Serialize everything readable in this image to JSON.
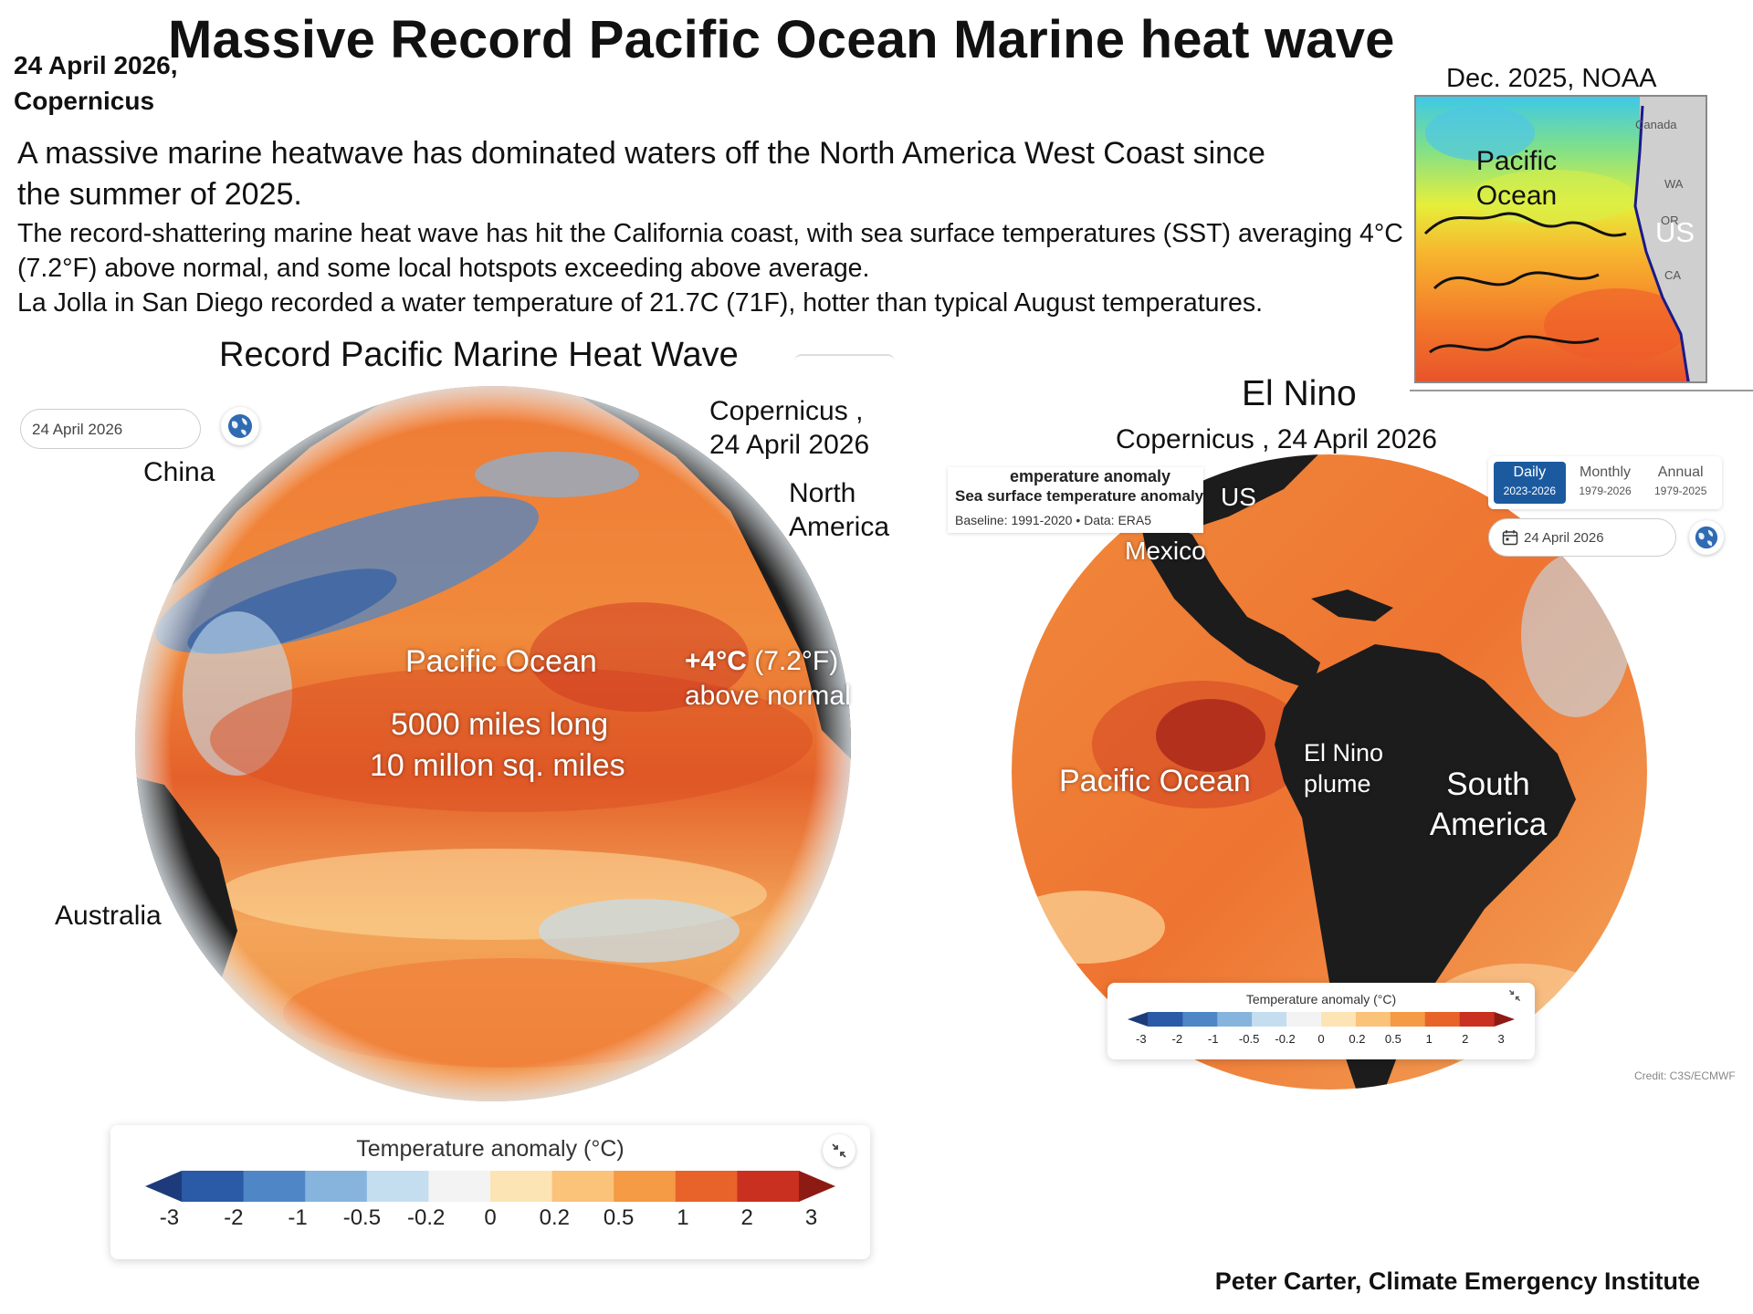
{
  "header": {
    "title": "Massive Record Pacific Ocean Marine heat wave",
    "date_source": "24 April 2026, Copernicus"
  },
  "intro": {
    "line1": "A massive marine heatwave has dominated waters off the North America West Coast since the summer of 2025.",
    "line2": "The record-shattering marine heat wave has hit the California coast, with sea surface temperatures (SST) averaging  4°C (7.2°F) above normal, and some local hotspots exceeding  above average.",
    "line3": "La Jolla in San Diego recorded a water temperature of  21.7C (71F), hotter than typical August temperatures."
  },
  "noaa_map": {
    "label": "Dec. 2025, NOAA",
    "ocean_label": "Pacific Ocean",
    "country_label": "US",
    "small_labels": [
      "Canada",
      "WA",
      "OR",
      "CA"
    ]
  },
  "left_panel": {
    "title": "Record Pacific Marine Heat Wave",
    "date_pill": "24 April 2026",
    "source": "Copernicus , 24 April 2026",
    "labels": {
      "china": "China",
      "north_america": "North America",
      "australia": "Australia",
      "ocean": "Pacific Ocean",
      "length": "5000 miles long",
      "area": "10 millon sq. miles",
      "anomaly_bold": "+4°C",
      "anomaly_rest": "(7.2°F)",
      "above": "above normal"
    },
    "legend": {
      "title": "Temperature anomaly (°C)",
      "ticks": [
        "-3",
        "-2",
        "-1",
        "-0.5",
        "-0.2",
        "0",
        "0.2",
        "0.5",
        "1",
        "2",
        "3"
      ]
    }
  },
  "right_panel": {
    "title": "El Nino",
    "source": "Copernicus , 24 April 2026",
    "info_box": {
      "cut_title": "emperature anomaly",
      "title": "Sea surface temperature anomaly",
      "subtitle": "Baseline: 1991-2020 • Data: ERA5"
    },
    "tabs": [
      {
        "label": "Daily",
        "range": "2023-2026",
        "active": true
      },
      {
        "label": "Monthly",
        "range": "1979-2026",
        "active": false
      },
      {
        "label": "Annual",
        "range": "1979-2025",
        "active": false
      }
    ],
    "date_pill": "24 April 2026",
    "labels": {
      "us": "US",
      "mexico": "Mexico",
      "ocean": "Pacific Ocean",
      "plume": "El Nino plume",
      "south_america": "South America"
    },
    "legend": {
      "title": "Temperature anomaly (°C)",
      "ticks": [
        "-3",
        "-2",
        "-1",
        "-0.5",
        "-0.2",
        "0",
        "0.2",
        "0.5",
        "1",
        "2",
        "3"
      ]
    },
    "credit": "Credit: C3S/ECMWF"
  },
  "footer": {
    "credit": "Peter Carter, Climate Emergency Institute"
  },
  "colors": {
    "scale": [
      "#1d3b7a",
      "#2b5aa6",
      "#4f86c6",
      "#86b4dd",
      "#c4def0",
      "#f3f3f3",
      "#fde4b5",
      "#fbc27a",
      "#f59a45",
      "#e8632a",
      "#c9301f",
      "#8e1a14"
    ],
    "active_tab": "#1c5aa0"
  }
}
